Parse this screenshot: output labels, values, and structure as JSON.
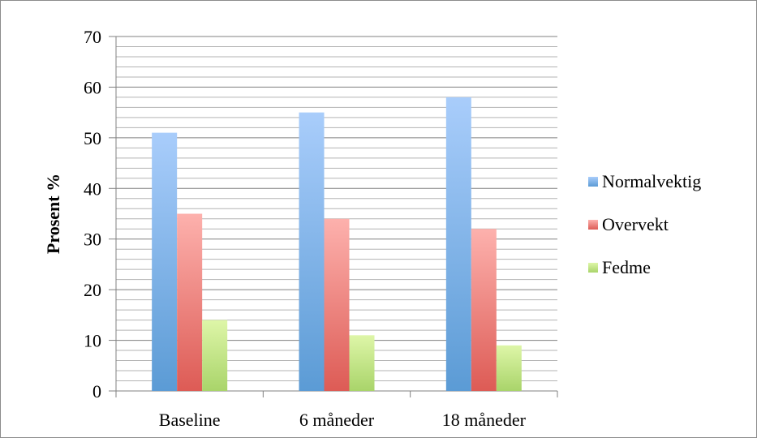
{
  "chart_data": {
    "type": "bar",
    "title": "",
    "xlabel": "",
    "ylabel": "Prosent %",
    "ylim": [
      0,
      70
    ],
    "yticks": [
      0,
      10,
      20,
      30,
      40,
      50,
      60,
      70
    ],
    "minor_gridlines": true,
    "legend_position": "right",
    "categories": [
      "Baseline",
      "6 måneder",
      "18 måneder"
    ],
    "series": [
      {
        "name": "Normalvektig",
        "values": [
          51,
          55,
          58
        ],
        "color": "#5b9bd5",
        "color_light": "#a9cdfb"
      },
      {
        "name": "Overvekt",
        "values": [
          35,
          34,
          32
        ],
        "color": "#dd5b55",
        "color_light": "#fdb1ad"
      },
      {
        "name": "Fedme",
        "values": [
          14,
          11,
          9
        ],
        "color": "#a9d46a",
        "color_light": "#def6a8"
      }
    ]
  }
}
